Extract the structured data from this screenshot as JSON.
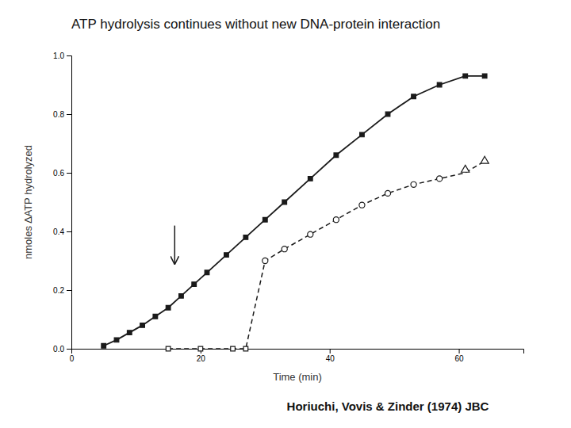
{
  "chart_data": {
    "type": "line",
    "title": "ATP hydrolysis continues without new DNA-protein interaction",
    "xlabel": "Time (min)",
    "ylabel": "nmoles ∆ATP hydrolyzed",
    "xlim": [
      0,
      70
    ],
    "ylim": [
      0,
      1.0
    ],
    "xticks": [
      0,
      20,
      40,
      60
    ],
    "yticks": [
      {
        "value": 0.0,
        "label": "0.0"
      },
      0.2,
      0.4,
      0.6,
      0.8,
      {
        "value": 1.0,
        "label": "1.0"
      }
    ],
    "grid": false,
    "series": [
      {
        "type": "line",
        "line_style": "solid",
        "marker": "square",
        "color": "#1a1a1a",
        "x": [
          5,
          7,
          9,
          11,
          13,
          15,
          17,
          19,
          21,
          24,
          27,
          30,
          33,
          37,
          41,
          45,
          49,
          53,
          57,
          61,
          64
        ],
        "values": [
          0.01,
          0.03,
          0.055,
          0.08,
          0.11,
          0.14,
          0.18,
          0.22,
          0.26,
          0.32,
          0.38,
          0.44,
          0.5,
          0.58,
          0.66,
          0.73,
          0.8,
          0.86,
          0.9,
          0.93,
          0.93
        ]
      },
      {
        "type": "line",
        "line_style": "dashed",
        "color": "#1a1a1a",
        "x": [
          15,
          17,
          19,
          21,
          24,
          27,
          30,
          33,
          37,
          41,
          45,
          49,
          53,
          57,
          61,
          64
        ],
        "values": [
          0.0,
          0.0,
          0.0,
          0.0,
          0.0,
          0.0,
          0.3,
          0.34,
          0.39,
          0.44,
          0.49,
          0.53,
          0.56,
          0.58,
          0.6,
          0.64
        ]
      },
      {
        "type": "scatter",
        "marker": "square-open",
        "color": "#1a1a1a",
        "x": [
          15,
          20,
          25,
          27
        ],
        "values": [
          0.0,
          0.0,
          0.0,
          0.0
        ]
      },
      {
        "type": "scatter",
        "marker": "circle-open",
        "color": "#1a1a1a",
        "x": [
          30,
          33,
          37,
          41,
          45,
          49,
          53,
          57
        ],
        "values": [
          0.3,
          0.34,
          0.39,
          0.44,
          0.49,
          0.53,
          0.56,
          0.58
        ]
      },
      {
        "type": "scatter",
        "marker": "triangle-open",
        "color": "#1a1a1a",
        "x": [
          61,
          64
        ],
        "values": [
          0.61,
          0.64
        ]
      }
    ],
    "annotations": [
      {
        "text": "Horiuchi, Vovis & Zinder (1974) JBC"
      },
      {
        "type": "arrow",
        "x": 16,
        "y_from": 0.42,
        "y": 0.29
      }
    ]
  }
}
